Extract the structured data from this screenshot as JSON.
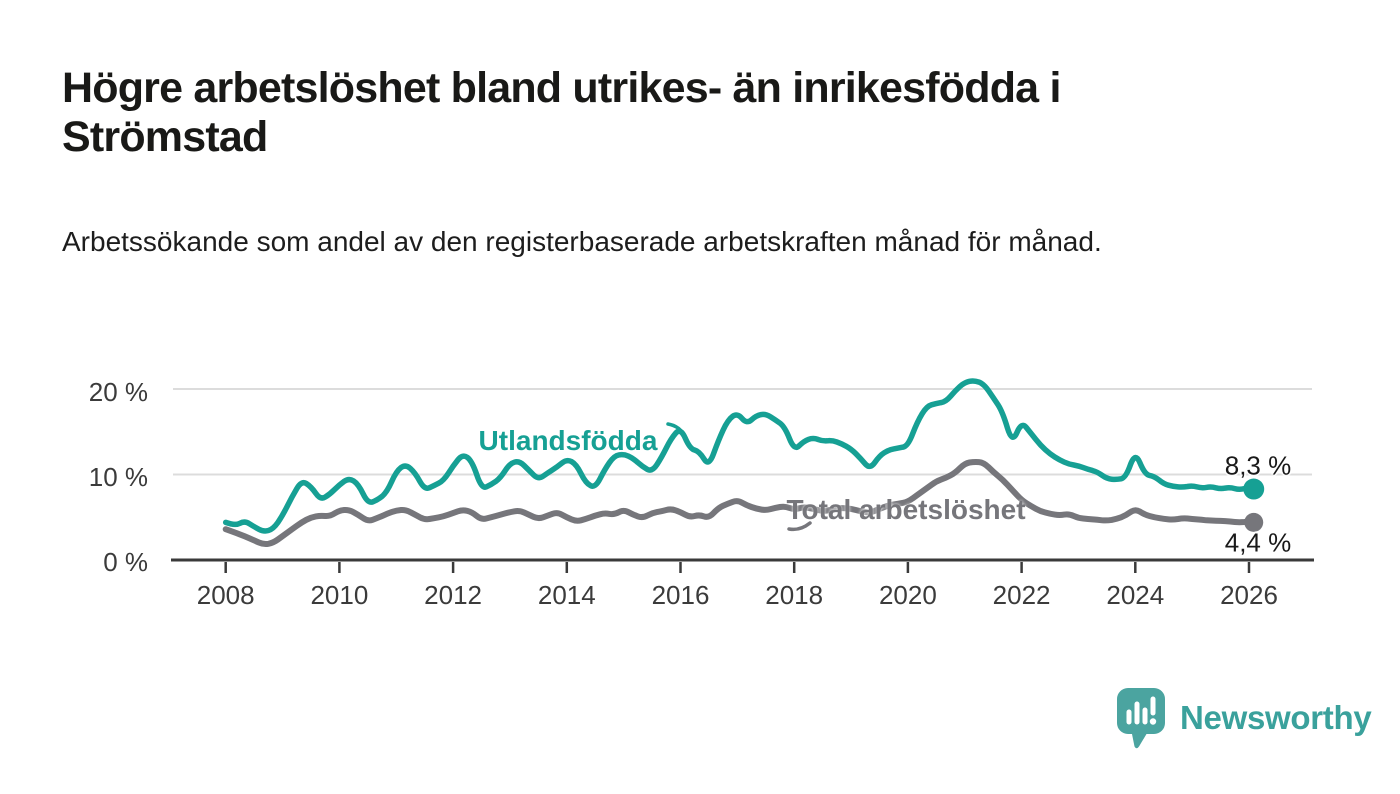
{
  "title": "Högre arbetslöshet bland utrikes- än inrikesfödda i Strömstad",
  "subtitle": "Arbetssökande som andel av den registerbaserade arbetskraften månad för månad.",
  "branding": {
    "name": "Newsworthy",
    "icon": "newsworthy-speech-bubble-chart-icon",
    "bubble_color": "#4ba4a0",
    "icon_glyph_color": "#ffffff",
    "text_color": "#3aa19c"
  },
  "colors": {
    "foreign_born_line": "#16a094",
    "total_line": "#76767b",
    "grid": "#dcdcdc",
    "axis": "#3a3a3a",
    "text_dark": "#191917"
  },
  "chart_data": {
    "type": "line",
    "title": "Högre arbetslöshet bland utrikes- än inrikesfödda i Strömstad",
    "xlabel": "",
    "ylabel": "",
    "unit": "%",
    "grid": "horizontal",
    "legend_position": "inline-labels",
    "xlim": [
      2007.85,
      2027.1
    ],
    "ylim": [
      0,
      22
    ],
    "x_ticks": [
      "2008",
      "2010",
      "2012",
      "2014",
      "2016",
      "2018",
      "2020",
      "2022",
      "2024",
      "2026"
    ],
    "y_ticks": [
      {
        "value": 0,
        "label": "0 %"
      },
      {
        "value": 10,
        "label": "10 %"
      },
      {
        "value": 20,
        "label": "20 %"
      }
    ],
    "x": [
      2008,
      2008.167,
      2008.333,
      2008.5,
      2008.667,
      2008.833,
      2009,
      2009.167,
      2009.333,
      2009.5,
      2009.667,
      2009.833,
      2010,
      2010.167,
      2010.333,
      2010.5,
      2010.667,
      2010.833,
      2011,
      2011.167,
      2011.333,
      2011.5,
      2011.667,
      2011.833,
      2012,
      2012.167,
      2012.333,
      2012.5,
      2012.667,
      2012.833,
      2013,
      2013.167,
      2013.333,
      2013.5,
      2013.667,
      2013.833,
      2014,
      2014.167,
      2014.333,
      2014.5,
      2014.667,
      2014.833,
      2015,
      2015.167,
      2015.333,
      2015.5,
      2015.667,
      2015.833,
      2016,
      2016.167,
      2016.333,
      2016.5,
      2016.667,
      2016.833,
      2017,
      2017.167,
      2017.333,
      2017.5,
      2017.667,
      2017.833,
      2018,
      2018.167,
      2018.333,
      2018.5,
      2018.667,
      2018.833,
      2019,
      2019.167,
      2019.333,
      2019.5,
      2019.667,
      2019.833,
      2020,
      2020.167,
      2020.333,
      2020.5,
      2020.667,
      2020.833,
      2021,
      2021.167,
      2021.333,
      2021.5,
      2021.667,
      2021.833,
      2022,
      2022.167,
      2022.333,
      2022.5,
      2022.667,
      2022.833,
      2023,
      2023.167,
      2023.333,
      2023.5,
      2023.667,
      2023.833,
      2024,
      2024.167,
      2024.333,
      2024.5,
      2024.667,
      2024.833,
      2025,
      2025.167,
      2025.333,
      2025.5,
      2025.667,
      2025.833,
      2026,
      2026.083
    ],
    "series": [
      {
        "name": "Utlandsfödda",
        "color": "#16a094",
        "end_label": "8,3 %",
        "end_value": 8.3,
        "values": [
          4.4,
          4.0,
          4.6,
          3.9,
          3.3,
          3.6,
          5.2,
          7.4,
          9.3,
          8.6,
          7.0,
          7.7,
          8.8,
          9.6,
          8.9,
          6.6,
          7.0,
          7.9,
          10.4,
          11.2,
          10.2,
          8.2,
          8.7,
          9.3,
          11.0,
          12.4,
          11.6,
          8.3,
          8.8,
          9.6,
          11.3,
          11.6,
          10.5,
          9.4,
          10.2,
          10.9,
          11.8,
          11.2,
          9.0,
          8.4,
          10.6,
          12.2,
          12.4,
          11.9,
          10.9,
          10.3,
          12.0,
          14.2,
          15.5,
          13.0,
          12.7,
          10.9,
          14.0,
          16.4,
          17.2,
          15.9,
          16.9,
          17.1,
          16.4,
          15.6,
          12.8,
          13.9,
          14.3,
          13.9,
          14.0,
          13.6,
          13.0,
          11.9,
          10.6,
          12.2,
          12.9,
          13.1,
          13.3,
          16.2,
          18.0,
          18.3,
          18.5,
          19.8,
          20.8,
          21.0,
          20.6,
          19.0,
          17.3,
          13.6,
          16.2,
          14.8,
          13.4,
          12.4,
          11.7,
          11.2,
          11.0,
          10.6,
          10.3,
          9.5,
          9.4,
          9.6,
          12.7,
          10.0,
          9.8,
          8.9,
          8.6,
          8.5,
          8.7,
          8.4,
          8.6,
          8.3,
          8.5,
          8.2,
          8.5,
          8.3
        ]
      },
      {
        "name": "Total arbetslöshet",
        "color": "#76767b",
        "end_label": "4,4 %",
        "end_value": 4.4,
        "values": [
          3.6,
          3.2,
          2.8,
          2.3,
          1.8,
          2.0,
          2.8,
          3.6,
          4.4,
          5.0,
          5.2,
          5.1,
          5.8,
          5.9,
          5.3,
          4.5,
          4.9,
          5.4,
          5.8,
          5.9,
          5.3,
          4.7,
          4.9,
          5.1,
          5.5,
          5.9,
          5.6,
          4.7,
          5.0,
          5.3,
          5.6,
          5.8,
          5.3,
          4.8,
          5.2,
          5.6,
          5.0,
          4.5,
          4.8,
          5.2,
          5.5,
          5.3,
          5.9,
          5.3,
          4.9,
          5.5,
          5.7,
          6.0,
          5.6,
          5.0,
          5.3,
          4.9,
          6.1,
          6.6,
          7.0,
          6.4,
          6.0,
          5.8,
          6.1,
          6.3,
          5.9,
          6.2,
          6.0,
          5.7,
          5.9,
          6.1,
          6.0,
          5.7,
          5.5,
          6.0,
          6.4,
          6.6,
          6.8,
          7.6,
          8.4,
          9.2,
          9.6,
          10.2,
          11.3,
          11.5,
          11.4,
          10.3,
          9.4,
          8.2,
          7.0,
          6.3,
          5.7,
          5.4,
          5.2,
          5.4,
          4.9,
          4.8,
          4.7,
          4.6,
          4.8,
          5.2,
          6.0,
          5.3,
          5.0,
          4.8,
          4.7,
          4.9,
          4.8,
          4.7,
          4.6,
          4.6,
          4.5,
          4.4,
          4.5,
          4.4
        ]
      }
    ]
  }
}
